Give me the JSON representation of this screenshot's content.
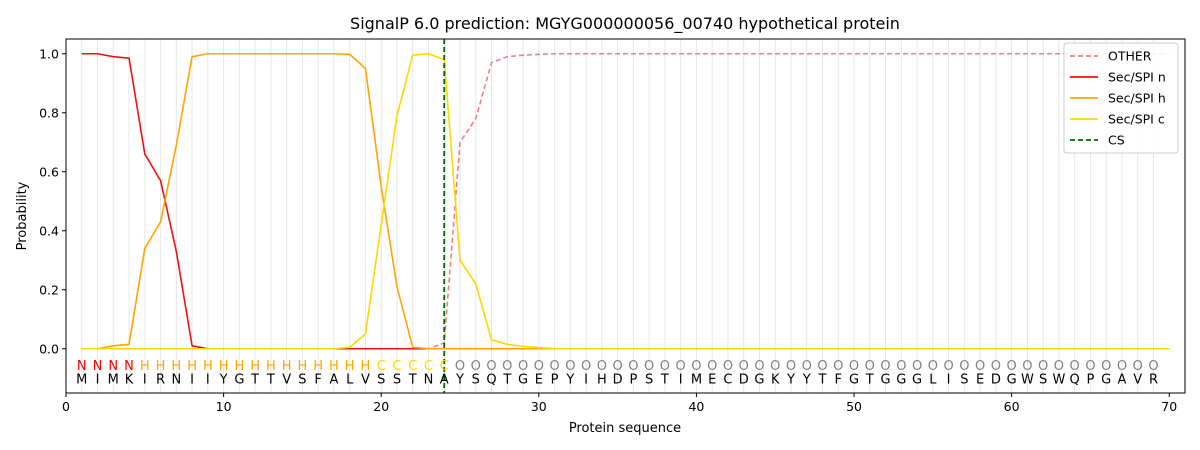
{
  "chart_data": {
    "type": "line",
    "title": "SignalP 6.0 prediction: MGYG000000056_00740 hypothetical protein",
    "xlabel": "Protein sequence",
    "ylabel": "Probability",
    "xlim": [
      0,
      71
    ],
    "ylim": [
      -0.15,
      1.05
    ],
    "xticks": [
      0,
      10,
      20,
      30,
      40,
      50,
      60,
      70
    ],
    "yticks": [
      0.0,
      0.2,
      0.4,
      0.6,
      0.8,
      1.0
    ],
    "xtick_labels": [
      "0",
      "10",
      "20",
      "30",
      "40",
      "50",
      "60",
      "70"
    ],
    "ytick_labels": [
      "0.0",
      "0.2",
      "0.4",
      "0.6",
      "0.8",
      "1.0"
    ],
    "grid": "vertical lines at each residue",
    "legend_position": "top-right",
    "sequence": [
      "M",
      "I",
      "M",
      "K",
      "I",
      "R",
      "N",
      "I",
      "I",
      "Y",
      "G",
      "T",
      "T",
      "V",
      "S",
      "F",
      "A",
      "L",
      "V",
      "S",
      "S",
      "T",
      "N",
      "A",
      "Y",
      "S",
      "Q",
      "T",
      "G",
      "E",
      "P",
      "Y",
      "I",
      "H",
      "D",
      "P",
      "S",
      "T",
      "I",
      "M",
      "E",
      "C",
      "D",
      "G",
      "K",
      "Y",
      "Y",
      "T",
      "F",
      "G",
      "T",
      "G",
      "G",
      "G",
      "L",
      "I",
      "S",
      "E",
      "D",
      "G",
      "W",
      "S",
      "W",
      "Q",
      "P",
      "G",
      "A",
      "V",
      "R"
    ],
    "annotations": [
      "N",
      "N",
      "N",
      "N",
      "H",
      "H",
      "H",
      "H",
      "H",
      "H",
      "H",
      "H",
      "H",
      "H",
      "H",
      "H",
      "H",
      "H",
      "H",
      "C",
      "C",
      "C",
      "C",
      "C",
      "O",
      "O",
      "O",
      "O",
      "O",
      "O",
      "O",
      "O",
      "O",
      "O",
      "O",
      "O",
      "O",
      "O",
      "O",
      "O",
      "O",
      "O",
      "O",
      "O",
      "O",
      "O",
      "O",
      "O",
      "O",
      "O",
      "O",
      "O",
      "O",
      "O",
      "O",
      "O",
      "O",
      "O",
      "O",
      "O",
      "O",
      "O",
      "O",
      "O",
      "O",
      "O",
      "O",
      "O",
      "O",
      "O"
    ],
    "annotation_colors": {
      "N": "#ff0000",
      "H": "#ffa500",
      "C": "#ffd700",
      "O": "#808080"
    },
    "cleavage_site": 24,
    "series": [
      {
        "name": "OTHER",
        "color": "#f08080",
        "dash": "dashed",
        "values": [
          0.0,
          0.0,
          0.0,
          0.0,
          0.0,
          0.0,
          0.0,
          0.0,
          0.0,
          0.0,
          0.0,
          0.0,
          0.0,
          0.0,
          0.0,
          0.0,
          0.0,
          0.0,
          0.0,
          0.0,
          0.0,
          0.0,
          0.0,
          0.02,
          0.7,
          0.78,
          0.97,
          0.99,
          0.995,
          0.998,
          1.0,
          1.0,
          1.0,
          1.0,
          1.0,
          1.0,
          1.0,
          1.0,
          1.0,
          1.0,
          1.0,
          1.0,
          1.0,
          1.0,
          1.0,
          1.0,
          1.0,
          1.0,
          1.0,
          1.0,
          1.0,
          1.0,
          1.0,
          1.0,
          1.0,
          1.0,
          1.0,
          1.0,
          1.0,
          1.0,
          1.0,
          1.0,
          1.0,
          1.0,
          1.0,
          1.0,
          1.0,
          1.0,
          1.0,
          1.0
        ]
      },
      {
        "name": "Sec/SPI n",
        "color": "#ee1111",
        "dash": "solid",
        "values": [
          1.0,
          1.0,
          0.99,
          0.985,
          0.66,
          0.57,
          0.33,
          0.01,
          0.0,
          0.0,
          0.0,
          0.0,
          0.0,
          0.0,
          0.0,
          0.0,
          0.0,
          0.0,
          0.0,
          0.0,
          0.0,
          0.0,
          0.0,
          0.0,
          0.0,
          0.0,
          0.0,
          0.0,
          0.0,
          0.0,
          0.0,
          0.0,
          0.0,
          0.0,
          0.0,
          0.0,
          0.0,
          0.0,
          0.0,
          0.0,
          0.0,
          0.0,
          0.0,
          0.0,
          0.0,
          0.0,
          0.0,
          0.0,
          0.0,
          0.0,
          0.0,
          0.0,
          0.0,
          0.0,
          0.0,
          0.0,
          0.0,
          0.0,
          0.0,
          0.0,
          0.0,
          0.0,
          0.0,
          0.0,
          0.0,
          0.0,
          0.0,
          0.0,
          0.0,
          0.0
        ]
      },
      {
        "name": "Sec/SPI h",
        "color": "#ffa500",
        "dash": "solid",
        "values": [
          0.0,
          0.0,
          0.01,
          0.015,
          0.34,
          0.43,
          0.69,
          0.99,
          1.0,
          1.0,
          1.0,
          1.0,
          1.0,
          1.0,
          1.0,
          1.0,
          1.0,
          0.998,
          0.95,
          0.55,
          0.21,
          0.005,
          0.0,
          0.0,
          0.0,
          0.0,
          0.0,
          0.0,
          0.0,
          0.0,
          0.0,
          0.0,
          0.0,
          0.0,
          0.0,
          0.0,
          0.0,
          0.0,
          0.0,
          0.0,
          0.0,
          0.0,
          0.0,
          0.0,
          0.0,
          0.0,
          0.0,
          0.0,
          0.0,
          0.0,
          0.0,
          0.0,
          0.0,
          0.0,
          0.0,
          0.0,
          0.0,
          0.0,
          0.0,
          0.0,
          0.0,
          0.0,
          0.0,
          0.0,
          0.0,
          0.0,
          0.0,
          0.0,
          0.0,
          0.0
        ]
      },
      {
        "name": "Sec/SPI c",
        "color": "#ffd700",
        "dash": "solid",
        "values": [
          0.0,
          0.0,
          0.0,
          0.0,
          0.0,
          0.0,
          0.0,
          0.0,
          0.0,
          0.0,
          0.0,
          0.0,
          0.0,
          0.0,
          0.0,
          0.0,
          0.0,
          0.005,
          0.05,
          0.42,
          0.79,
          0.995,
          1.0,
          0.98,
          0.3,
          0.22,
          0.03,
          0.015,
          0.008,
          0.004,
          0.0,
          0.0,
          0.0,
          0.0,
          0.0,
          0.0,
          0.0,
          0.0,
          0.0,
          0.0,
          0.0,
          0.0,
          0.0,
          0.0,
          0.0,
          0.0,
          0.0,
          0.0,
          0.0,
          0.0,
          0.0,
          0.0,
          0.0,
          0.0,
          0.0,
          0.0,
          0.0,
          0.0,
          0.0,
          0.0,
          0.0,
          0.0,
          0.0,
          0.0,
          0.0,
          0.0,
          0.0,
          0.0,
          0.0,
          0.0
        ]
      }
    ],
    "cs_marker": {
      "name": "CS",
      "color": "#006400",
      "dash": "dashed"
    }
  }
}
